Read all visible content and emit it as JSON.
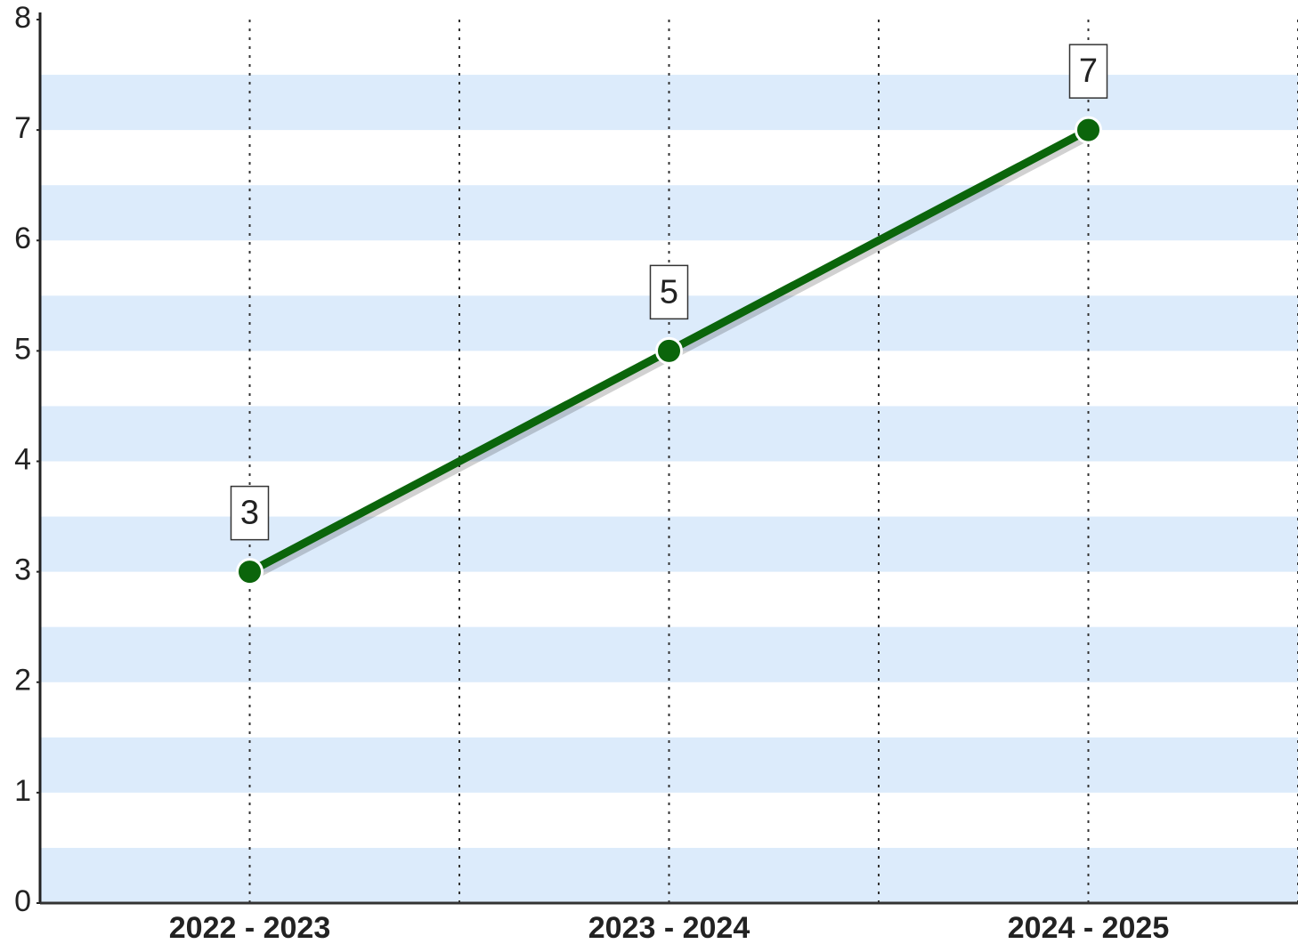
{
  "chart_data": {
    "type": "line",
    "categories": [
      "2022 - 2023",
      "2023 - 2024",
      "2024 - 2025"
    ],
    "values": [
      3,
      5,
      7
    ],
    "color": "#0b650b",
    "ylim": [
      0,
      8
    ],
    "yticks": [
      0,
      1,
      2,
      3,
      4,
      5,
      6,
      7,
      8
    ],
    "grid": true,
    "band_color": "#dcebfb"
  }
}
